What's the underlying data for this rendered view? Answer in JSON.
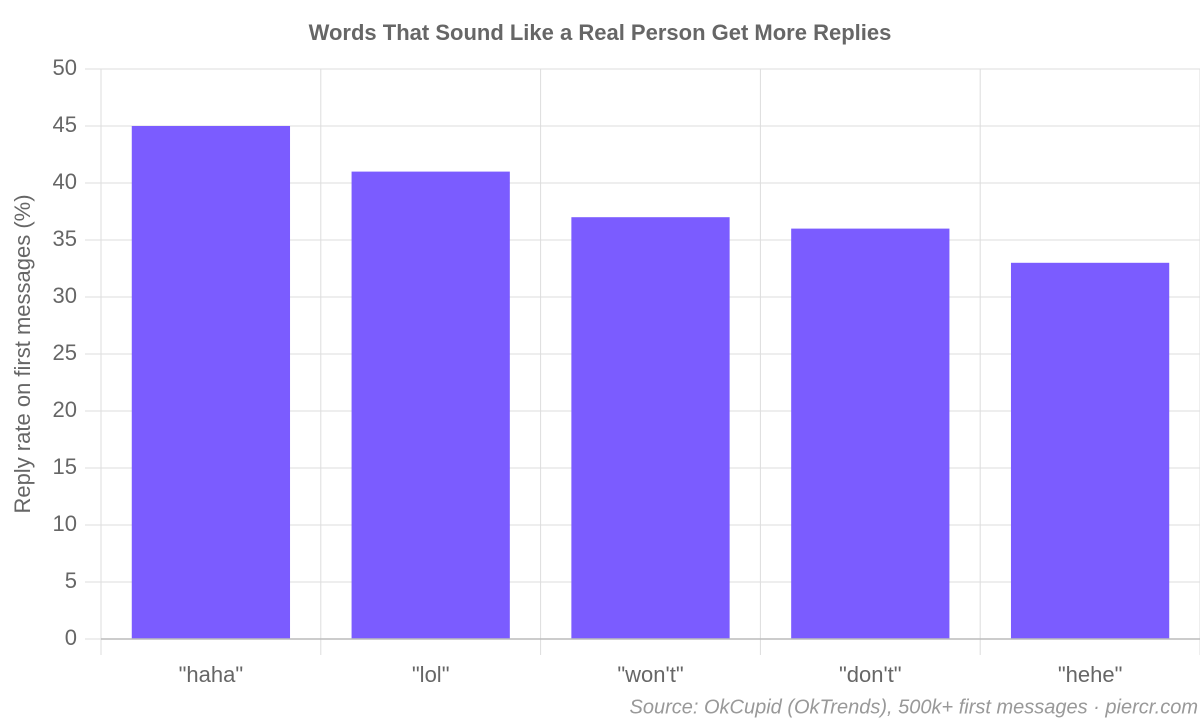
{
  "chart_data": {
    "type": "bar",
    "title": "Words That Sound Like a Real Person Get More Replies",
    "y_label": "Reply rate on first messages (%)",
    "source": "Source: OkCupid (OkTrends), 500k+ first messages · piercr.com",
    "categories": [
      "\"haha\"",
      "\"lol\"",
      "\"won't\"",
      "\"don't\"",
      "\"hehe\""
    ],
    "values": [
      45,
      41,
      37,
      36,
      33
    ],
    "color": "#7b5cff",
    "ylim": [
      0,
      50
    ],
    "yticks": [
      0,
      5,
      10,
      15,
      20,
      25,
      30,
      35,
      40,
      45,
      50
    ],
    "grid": true
  }
}
